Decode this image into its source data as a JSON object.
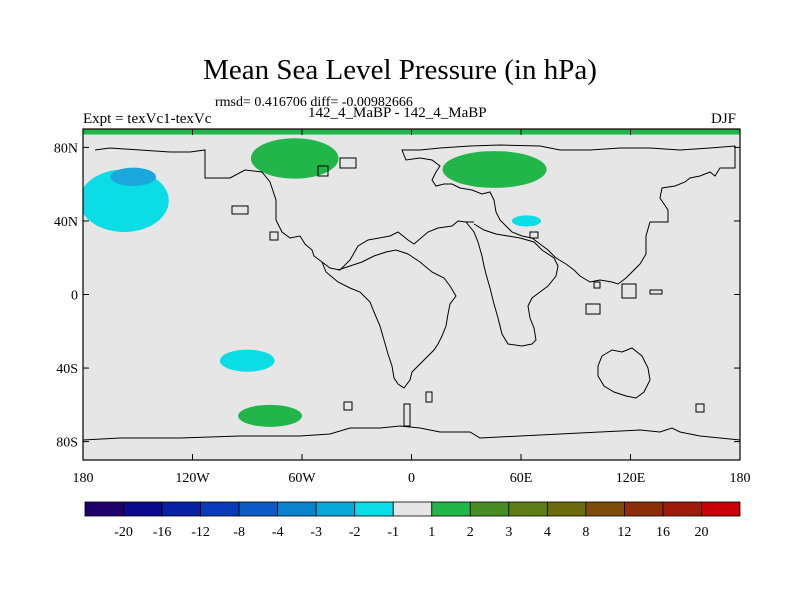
{
  "chart_data": {
    "type": "heatmap",
    "title": "Mean Sea Level Pressure (in hPa)",
    "stats_text": "rmsd= 0.416706 diff= -0.00982666",
    "left_label": "Expt = texVc1-texVc",
    "center_label": "142_4_MaBP - 142_4_MaBP",
    "right_label": "DJF",
    "x_ticks": [
      {
        "value": -180,
        "label": "180"
      },
      {
        "value": -120,
        "label": "120W"
      },
      {
        "value": -60,
        "label": "60W"
      },
      {
        "value": 0,
        "label": "0"
      },
      {
        "value": 60,
        "label": "60E"
      },
      {
        "value": 120,
        "label": "120E"
      },
      {
        "value": 180,
        "label": "180"
      }
    ],
    "y_ticks": [
      {
        "value": 80,
        "label": "80N"
      },
      {
        "value": 40,
        "label": "40N"
      },
      {
        "value": 0,
        "label": "0"
      },
      {
        "value": -40,
        "label": "40S"
      },
      {
        "value": -80,
        "label": "80S"
      }
    ],
    "xlim": [
      -180,
      180
    ],
    "ylim": [
      -90,
      90
    ],
    "colorbar": {
      "labels": [
        "-20",
        "-16",
        "-12",
        "-8",
        "-4",
        "-3",
        "-2",
        "-1",
        "1",
        "2",
        "3",
        "4",
        "8",
        "12",
        "16",
        "20"
      ],
      "colors": [
        "#20006a",
        "#0c0a8c",
        "#0622a3",
        "#0a3bb8",
        "#0c5bc6",
        "#0a83cf",
        "#0aa8d8",
        "#0bdde6",
        "#e6e6e6",
        "#22b54a",
        "#4a8c24",
        "#5f7d16",
        "#6b6a0c",
        "#7d4c0a",
        "#8c2e08",
        "#a01a0a",
        "#c8000a"
      ]
    },
    "anomalies": [
      {
        "name": "cyan-pacific-north",
        "level": "-1",
        "color": "#0bdde6",
        "lon": [
          -182,
          -133
        ],
        "lat": [
          34,
          68
        ]
      },
      {
        "name": "blue-pacific-north-core",
        "level": "-2",
        "color": "#1aa8dc",
        "lon": [
          -165,
          -140
        ],
        "lat": [
          59,
          69
        ]
      },
      {
        "name": "green-greenland",
        "level": "1",
        "color": "#22b54a",
        "lon": [
          -88,
          -40
        ],
        "lat": [
          63,
          85
        ]
      },
      {
        "name": "green-siberia-north",
        "level": "1",
        "color": "#22b54a",
        "lon": [
          17,
          74
        ],
        "lat": [
          58,
          78
        ]
      },
      {
        "name": "cyan-caspian",
        "level": "-1",
        "color": "#0bdde6",
        "lon": [
          55,
          71
        ],
        "lat": [
          37,
          43
        ]
      },
      {
        "name": "cyan-south-pacific",
        "level": "-1",
        "color": "#0bdde6",
        "lon": [
          -105,
          -75
        ],
        "lat": [
          -42,
          -30
        ]
      },
      {
        "name": "green-south-pacific",
        "level": "1",
        "color": "#22b54a",
        "lon": [
          -95,
          -60
        ],
        "lat": [
          -72,
          -60
        ]
      },
      {
        "name": "green-top-band",
        "level": "1",
        "color": "#22b54a",
        "lon": [
          -180,
          180
        ],
        "lat": [
          87,
          90
        ]
      }
    ]
  }
}
